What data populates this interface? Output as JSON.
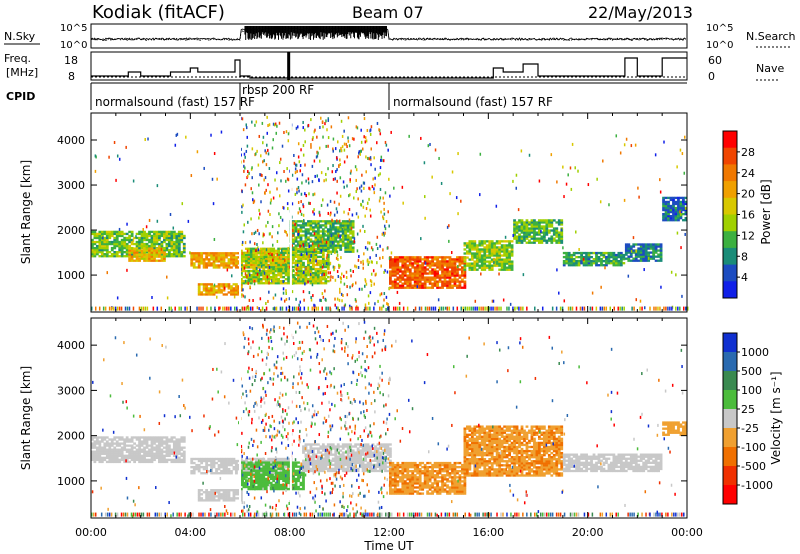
{
  "header": {
    "station": "Kodiak (fitACF)",
    "beam": "Beam 07",
    "date": "22/May/2013"
  },
  "strips": {
    "nsky_label": "N.Sky",
    "nsky_ticks": [
      "10^5",
      "10^0"
    ],
    "nsky_right_ticks": [
      "10^5",
      "10^0"
    ],
    "nsearch_label": "N.Search",
    "freq_label_1": "Freq.",
    "freq_label_2": "[MHz]",
    "freq_ticks": [
      "18",
      "8"
    ],
    "nave_ticks": [
      "60",
      "0"
    ],
    "nave_label": "Nave",
    "cpid_label": "CPID",
    "cpid_segments": [
      {
        "label": "normalsound (fast) 157 RF",
        "start": 0,
        "end": 6.0
      },
      {
        "label": "rbsp 200 RF",
        "start": 6.0,
        "end": 12.0
      },
      {
        "label": "normalsound (fast) 157 RF",
        "start": 12.0,
        "end": 24.0
      }
    ]
  },
  "chart_data": [
    {
      "type": "heatmap",
      "panel": "power",
      "xlabel": "Time UT",
      "ylabel": "Slant Range [km]",
      "xticks": [
        "00:00",
        "04:00",
        "08:00",
        "12:00",
        "16:00",
        "20:00",
        "00:00"
      ],
      "xlim_hours": [
        0,
        24
      ],
      "ylim": [
        180,
        4600
      ],
      "yticks": [
        1000,
        2000,
        3000,
        4000
      ],
      "colorbar": {
        "label": "Power [dB]",
        "ticks": [
          "28",
          "24",
          "20",
          "16",
          "12",
          "8",
          "4"
        ],
        "colors": [
          "#ff0000",
          "#f04500",
          "#f07800",
          "#f0a000",
          "#d8c800",
          "#a0d000",
          "#3cb040",
          "#1a8c78",
          "#1c4cc0",
          "#1020e8"
        ],
        "range": [
          0,
          30
        ]
      },
      "bands": [
        {
          "t0": 0.0,
          "t1": 3.8,
          "r_lo": 1400,
          "r_hi": 1950,
          "intensity": 12
        },
        {
          "t0": 1.5,
          "t1": 3.0,
          "r_lo": 1300,
          "r_hi": 1600,
          "intensity": 18
        },
        {
          "t0": 4.0,
          "t1": 8.0,
          "r_lo": 1150,
          "r_hi": 1500,
          "intensity": 20
        },
        {
          "t0": 4.3,
          "t1": 6.0,
          "r_lo": 550,
          "r_hi": 800,
          "intensity": 20
        },
        {
          "t0": 6.0,
          "t1": 9.5,
          "r_lo": 800,
          "r_hi": 1600,
          "intensity": 14
        },
        {
          "t0": 8.0,
          "t1": 10.5,
          "r_lo": 1500,
          "r_hi": 2200,
          "intensity": 11
        },
        {
          "t0": 12.0,
          "t1": 15.0,
          "r_lo": 700,
          "r_hi": 1400,
          "intensity": 24
        },
        {
          "t0": 15.0,
          "t1": 17.0,
          "r_lo": 1100,
          "r_hi": 1750,
          "intensity": 13
        },
        {
          "t0": 17.0,
          "t1": 19.0,
          "r_lo": 1700,
          "r_hi": 2200,
          "intensity": 11
        },
        {
          "t0": 19.0,
          "t1": 21.5,
          "r_lo": 1200,
          "r_hi": 1500,
          "intensity": 9
        },
        {
          "t0": 21.5,
          "t1": 23.0,
          "r_lo": 1300,
          "r_hi": 1700,
          "intensity": 7
        },
        {
          "t0": 23.0,
          "t1": 24.0,
          "r_lo": 2200,
          "r_hi": 2700,
          "intensity": 6
        }
      ]
    },
    {
      "type": "heatmap",
      "panel": "velocity",
      "xlabel": "Time UT",
      "ylabel": "Slant Range [km]",
      "xticks": [
        "00:00",
        "04:00",
        "08:00",
        "12:00",
        "16:00",
        "20:00",
        "00:00"
      ],
      "xlim_hours": [
        0,
        24
      ],
      "ylim": [
        180,
        4600
      ],
      "yticks": [
        1000,
        2000,
        3000,
        4000
      ],
      "colorbar": {
        "label": "Velocity [m s⁻¹]",
        "ticks": [
          "1000",
          "500",
          "100",
          "25",
          "-25",
          "-100",
          "-500",
          "-1000"
        ],
        "colors": [
          "#1030d0",
          "#2a6ab0",
          "#3a8a50",
          "#4cbc3c",
          "#c8c8c8",
          "#f0a030",
          "#f07000",
          "#f03000",
          "#ff0000"
        ],
        "range": [
          -1000,
          1000
        ]
      },
      "bands": [
        {
          "t0": 0.0,
          "t1": 3.8,
          "r_lo": 1400,
          "r_hi": 1950,
          "velocity": 0
        },
        {
          "t0": 4.0,
          "t1": 8.0,
          "r_lo": 1150,
          "r_hi": 1500,
          "velocity": 0
        },
        {
          "t0": 4.3,
          "t1": 6.0,
          "r_lo": 550,
          "r_hi": 800,
          "velocity": 0
        },
        {
          "t0": 6.0,
          "t1": 8.5,
          "r_lo": 800,
          "r_hi": 1400,
          "velocity": 200
        },
        {
          "t0": 8.5,
          "t1": 12.0,
          "r_lo": 1200,
          "r_hi": 1800,
          "velocity": 0
        },
        {
          "t0": 12.0,
          "t1": 15.0,
          "r_lo": 700,
          "r_hi": 1400,
          "velocity": -300
        },
        {
          "t0": 15.0,
          "t1": 19.0,
          "r_lo": 1100,
          "r_hi": 2200,
          "velocity": -300
        },
        {
          "t0": 19.0,
          "t1": 23.0,
          "r_lo": 1200,
          "r_hi": 1600,
          "velocity": 0
        },
        {
          "t0": 23.0,
          "t1": 24.0,
          "r_lo": 2000,
          "r_hi": 2300,
          "velocity": -200
        }
      ]
    }
  ]
}
